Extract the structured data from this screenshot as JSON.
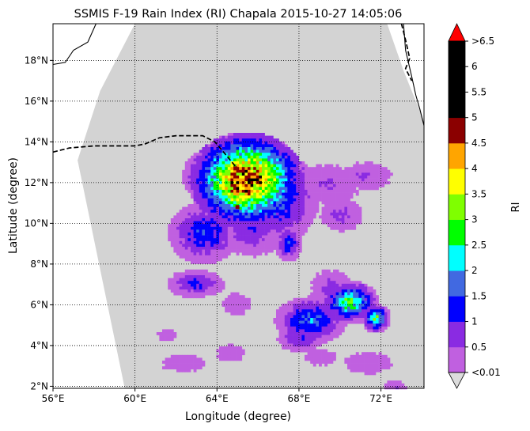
{
  "chart_data": {
    "type": "heatmap",
    "title": "SSMIS F-19 Rain Index (RI) Chapala 2015-10-27 14:05:06",
    "xlabel": "Longitude (degree)",
    "ylabel": "Latitude (degree)",
    "xlim": [
      56.0,
      74.1
    ],
    "ylim": [
      1.9,
      19.8
    ],
    "x_ticks": [
      56,
      60,
      64,
      68,
      72
    ],
    "x_tick_labels": [
      "56°E",
      "60°E",
      "64°E",
      "68°E",
      "72°E"
    ],
    "y_ticks": [
      2,
      4,
      6,
      8,
      10,
      12,
      14,
      16,
      18
    ],
    "y_tick_labels": [
      "2°N",
      "4°N",
      "6°N",
      "8°N",
      "10°N",
      "12°N",
      "14°N",
      "16°N",
      "18°N"
    ],
    "grid": true,
    "colorbar": {
      "label": "RI",
      "ticks": [
        "<0.01",
        "0.5",
        "1",
        "1.5",
        "2",
        "2.5",
        "3",
        "3.5",
        "4",
        "4.5",
        "5",
        "5.5",
        "6",
        ">6.5"
      ],
      "colors": [
        "#c060e0",
        "#8a2be2",
        "#0000ff",
        "#4169e1",
        "#00ffff",
        "#00ff00",
        "#7fff00",
        "#ffff00",
        "#ffa500",
        "#8b0000",
        "#000000",
        "#000000",
        "#000000"
      ],
      "over_color": "#ff0000",
      "under_color": "#dcdcdc"
    },
    "background_color": "#d3d3d3",
    "swath_edge": [
      [
        57.2,
        13.1
      ],
      [
        58.3,
        16.5
      ],
      [
        60.0,
        19.8
      ],
      [
        72.3,
        19.8
      ],
      [
        73.1,
        17.5
      ],
      [
        74.1,
        15.0
      ],
      [
        74.1,
        1.9
      ],
      [
        59.5,
        1.9
      ],
      [
        57.2,
        13.1
      ]
    ],
    "rain_blobs": [
      {
        "lon": 65.4,
        "lat": 12.2,
        "rlon": 2.4,
        "rlat": 2.0,
        "peak": 4.8
      },
      {
        "lon": 66.8,
        "lat": 11.3,
        "rlon": 1.8,
        "rlat": 1.9,
        "peak": 1.6
      },
      {
        "lon": 63.5,
        "lat": 12.4,
        "rlon": 1.1,
        "rlat": 1.1,
        "peak": 1.2
      },
      {
        "lon": 63.3,
        "lat": 9.6,
        "rlon": 1.5,
        "rlat": 1.3,
        "peak": 1.4
      },
      {
        "lon": 65.6,
        "lat": 9.8,
        "rlon": 1.5,
        "rlat": 1.2,
        "peak": 0.9
      },
      {
        "lon": 67.4,
        "lat": 9.1,
        "rlon": 0.6,
        "rlat": 0.8,
        "peak": 1.3
      },
      {
        "lon": 69.3,
        "lat": 12.0,
        "rlon": 1.7,
        "rlat": 1.0,
        "peak": 0.5
      },
      {
        "lon": 71.2,
        "lat": 12.4,
        "rlon": 1.3,
        "rlat": 0.7,
        "peak": 0.5
      },
      {
        "lon": 70.0,
        "lat": 10.5,
        "rlon": 1.0,
        "rlat": 0.8,
        "peak": 0.6
      },
      {
        "lon": 70.4,
        "lat": 6.2,
        "rlon": 1.2,
        "rlat": 0.9,
        "peak": 2.6
      },
      {
        "lon": 71.7,
        "lat": 5.4,
        "rlon": 0.6,
        "rlat": 0.6,
        "peak": 2.6
      },
      {
        "lon": 68.5,
        "lat": 5.3,
        "rlon": 1.5,
        "rlat": 1.0,
        "peak": 1.7
      },
      {
        "lon": 69.5,
        "lat": 6.9,
        "rlon": 1.0,
        "rlat": 0.9,
        "peak": 0.6
      },
      {
        "lon": 68.0,
        "lat": 4.4,
        "rlon": 1.0,
        "rlat": 0.6,
        "peak": 1.0
      },
      {
        "lon": 62.9,
        "lat": 7.1,
        "rlon": 1.2,
        "rlat": 0.6,
        "peak": 1.1
      },
      {
        "lon": 64.9,
        "lat": 6.1,
        "rlon": 0.8,
        "rlat": 0.6,
        "peak": 0.4
      },
      {
        "lon": 62.3,
        "lat": 3.2,
        "rlon": 1.2,
        "rlat": 0.5,
        "peak": 0.4
      },
      {
        "lon": 64.6,
        "lat": 3.7,
        "rlon": 0.8,
        "rlat": 0.5,
        "peak": 0.4
      },
      {
        "lon": 71.3,
        "lat": 3.2,
        "rlon": 1.3,
        "rlat": 0.6,
        "peak": 0.4
      },
      {
        "lon": 69.0,
        "lat": 3.5,
        "rlon": 0.8,
        "rlat": 0.5,
        "peak": 0.4
      },
      {
        "lon": 61.5,
        "lat": 4.6,
        "rlon": 0.6,
        "rlat": 0.4,
        "peak": 0.3
      },
      {
        "lon": 72.6,
        "lat": 2.0,
        "rlon": 0.6,
        "rlat": 0.4,
        "peak": 0.5
      }
    ],
    "coastlines": [
      [
        [
          56.0,
          17.8
        ],
        [
          56.6,
          17.9
        ],
        [
          57.0,
          18.5
        ],
        [
          57.7,
          18.9
        ],
        [
          58.1,
          19.8
        ]
      ],
      [
        [
          73.1,
          19.8
        ],
        [
          73.2,
          18.5
        ],
        [
          73.5,
          17.2
        ],
        [
          73.7,
          16.3
        ],
        [
          73.9,
          15.6
        ],
        [
          74.1,
          14.8
        ]
      ]
    ],
    "border_dashed": [
      [
        [
          56.0,
          13.5
        ],
        [
          56.8,
          13.7
        ],
        [
          58.0,
          13.8
        ],
        [
          60.0,
          13.8
        ],
        [
          60.5,
          13.9
        ],
        [
          61.2,
          14.2
        ],
        [
          62.0,
          14.3
        ],
        [
          63.3,
          14.3
        ],
        [
          63.9,
          14.0
        ],
        [
          64.4,
          13.4
        ],
        [
          64.9,
          12.8
        ]
      ],
      [
        [
          73.0,
          19.8
        ],
        [
          73.2,
          19.0
        ],
        [
          73.4,
          18.1
        ],
        [
          73.2,
          17.6
        ],
        [
          73.5,
          17.0
        ]
      ]
    ],
    "storm_markers": [
      [
        64.9,
        12.7
      ],
      [
        65.0,
        10.8
      ]
    ]
  }
}
